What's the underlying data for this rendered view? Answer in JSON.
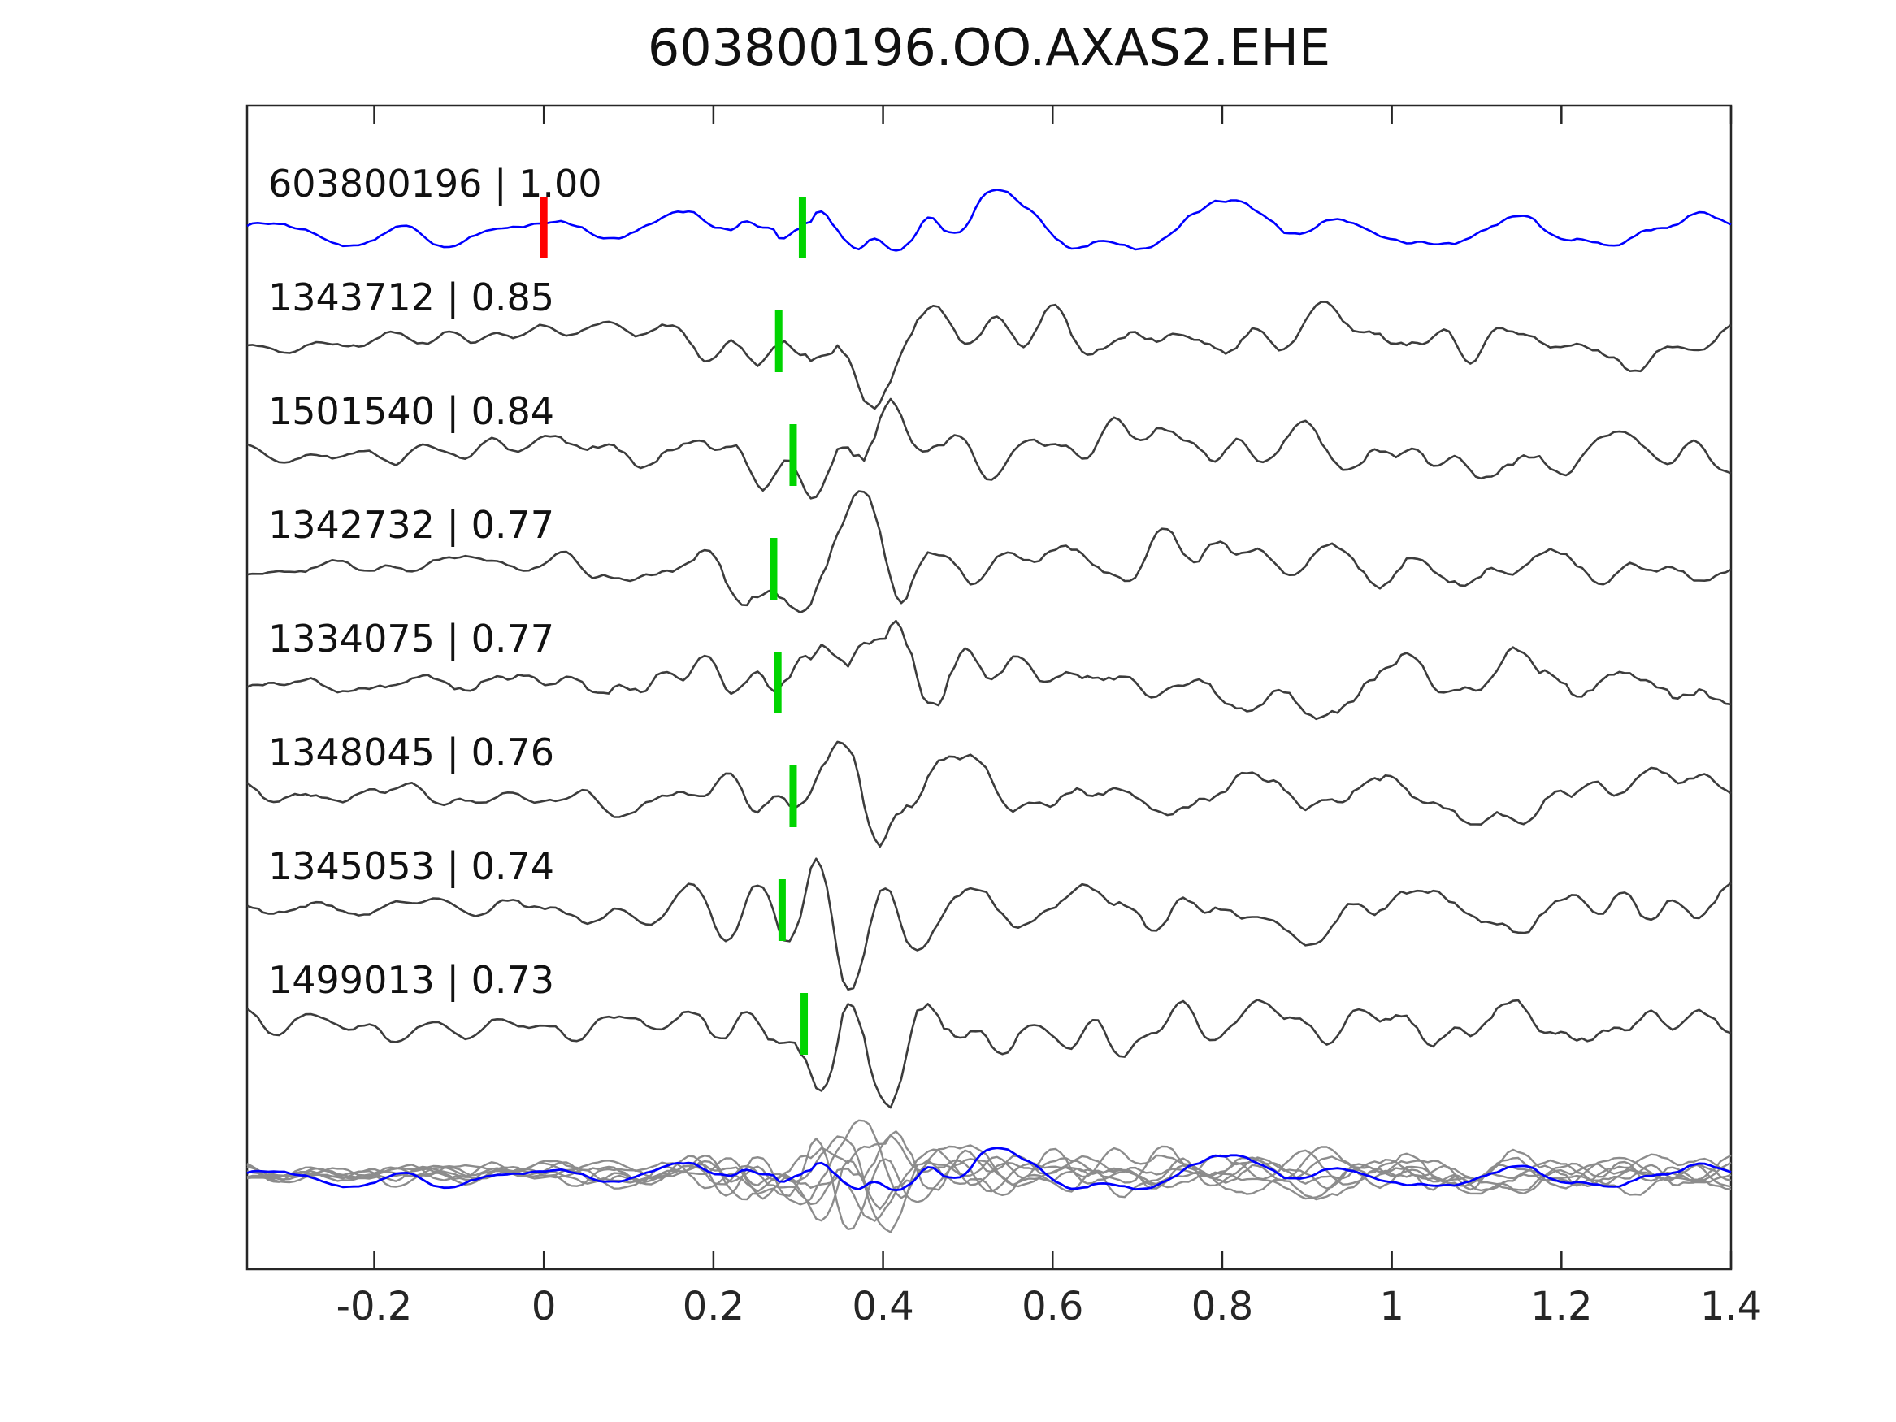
{
  "title": "603800196.OO.AXAS2.EHE",
  "colors": {
    "template_trace": "#0000ff",
    "detection_trace": "#3c3c3c",
    "overlay_detection": "#8c8c8c",
    "pick_marker_green": "#00d400",
    "origin_marker_red": "#ff0000",
    "axis": "#262626",
    "text": "#111111",
    "background": "#ffffff"
  },
  "chart_data": {
    "type": "line",
    "title": "603800196.OO.AXAS2.EHE",
    "xlabel": "",
    "ylabel": "",
    "xlim": [
      -0.35,
      1.4
    ],
    "x_ticks": [
      -0.2,
      0,
      0.2,
      0.4,
      0.6,
      0.8,
      1,
      1.2,
      1.4
    ],
    "x_tick_labels": [
      "-0.2",
      "0",
      "0.2",
      "0.4",
      "0.6",
      "0.8",
      "1",
      "1.2",
      "1.4"
    ],
    "grid": false,
    "legend_position": "none",
    "description": "Stacked seismic waveform traces: blue template trace (correlation 1.00) above seven gray detection traces, each labeled 'id | correlation'. Green bars mark pick times near x=0.28-0.31; a red bar marks x=0 on the template trace. Bottom row overlays all detection traces (light gray) with the blue template on top.",
    "traces": [
      {
        "id": "603800196",
        "correlation": "1.00",
        "label": "603800196 | 1.00",
        "role": "template",
        "pick_x": 0.305,
        "origin_x": 0.0,
        "seed": 101
      },
      {
        "id": "1343712",
        "correlation": "0.85",
        "label": "1343712 | 0.85",
        "role": "detection",
        "pick_x": 0.277,
        "seed": 202
      },
      {
        "id": "1501540",
        "correlation": "0.84",
        "label": "1501540 | 0.84",
        "role": "detection",
        "pick_x": 0.294,
        "seed": 303
      },
      {
        "id": "1342732",
        "correlation": "0.77",
        "label": "1342732 | 0.77",
        "role": "detection",
        "pick_x": 0.271,
        "seed": 404
      },
      {
        "id": "1334075",
        "correlation": "0.77",
        "label": "1334075 | 0.77",
        "role": "detection",
        "pick_x": 0.276,
        "seed": 505
      },
      {
        "id": "1348045",
        "correlation": "0.76",
        "label": "1348045 | 0.76",
        "role": "detection",
        "pick_x": 0.294,
        "seed": 606
      },
      {
        "id": "1345053",
        "correlation": "0.74",
        "label": "1345053 | 0.74",
        "role": "detection",
        "pick_x": 0.281,
        "seed": 707
      },
      {
        "id": "1499013",
        "correlation": "0.73",
        "label": "1499013 | 0.73",
        "role": "detection",
        "pick_x": 0.307,
        "seed": 808
      }
    ],
    "overlay_row": {
      "contains": "all detection traces plus template",
      "template_on_top": true
    },
    "waveform_synthesis": {
      "samples": 280,
      "trace_amp": 75,
      "overlay_amp": 52,
      "envelope": {
        "base": 0.3,
        "burst": 0.85,
        "burst_x": 0.36,
        "burst_w": 0.078,
        "coda": 0.26,
        "coda_x": 0.95,
        "coda_w": 0.55
      },
      "marker": {
        "width": 9,
        "height": 76
      }
    }
  }
}
